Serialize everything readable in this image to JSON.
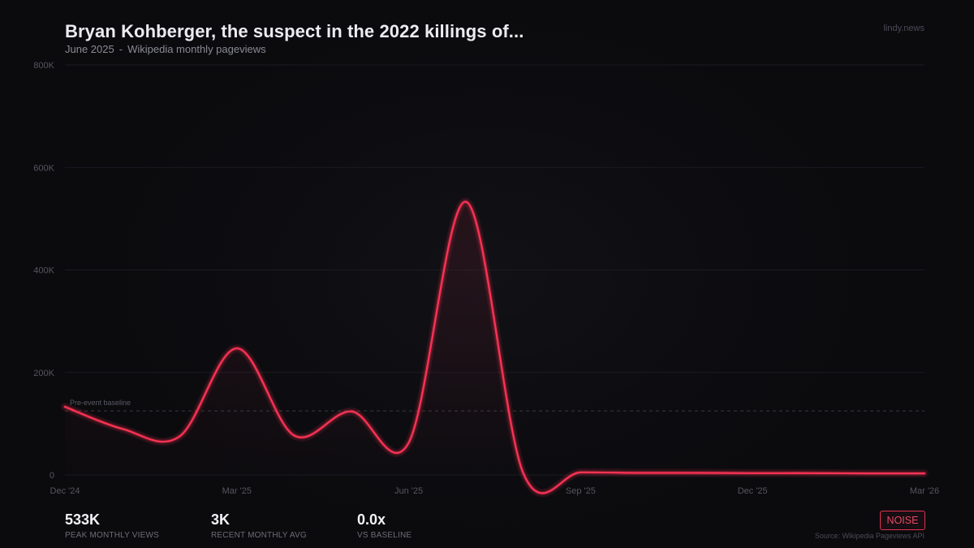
{
  "header": {
    "title": "Bryan Kohberger, the suspect in the 2022 killings of...",
    "period": "June 2025",
    "separator": "-",
    "metric": "Wikipedia monthly pageviews",
    "brand": "lindy.news"
  },
  "chart_data": {
    "type": "line",
    "title": "Bryan Kohberger, the suspect in the 2022 killings of...",
    "xlabel": "",
    "ylabel": "",
    "ylim": [
      0,
      800000
    ],
    "yticks": [
      {
        "value": 0,
        "label": "0"
      },
      {
        "value": 200000,
        "label": "200K"
      },
      {
        "value": 400000,
        "label": "400K"
      },
      {
        "value": 600000,
        "label": "600K"
      },
      {
        "value": 800000,
        "label": "800K"
      }
    ],
    "xticks": [
      {
        "index": 0,
        "label": "Dec '24"
      },
      {
        "index": 3,
        "label": "Mar '25"
      },
      {
        "index": 6,
        "label": "Jun '25"
      },
      {
        "index": 9,
        "label": "Sep '25"
      },
      {
        "index": 12,
        "label": "Dec '25"
      },
      {
        "index": 15,
        "label": "Mar '26"
      }
    ],
    "x": [
      "Dec '24",
      "Jan '25",
      "Feb '25",
      "Mar '25",
      "Apr '25",
      "May '25",
      "Jun '25",
      "Jul '25",
      "Aug '25",
      "Sep '25",
      "Oct '25",
      "Nov '25",
      "Dec '25",
      "Jan '26",
      "Feb '26",
      "Mar '26"
    ],
    "series": [
      {
        "name": "Monthly pageviews",
        "color": "#ff3355",
        "values": [
          133000,
          90000,
          75000,
          247000,
          77000,
          124000,
          63000,
          533000,
          3000,
          5000,
          4000,
          4000,
          3500,
          3500,
          3000,
          3000
        ]
      }
    ],
    "baseline": {
      "value": 125000,
      "label": "Pre-event baseline"
    },
    "grid": true,
    "legend": "none"
  },
  "stats": [
    {
      "value": "533K",
      "label": "PEAK MONTHLY VIEWS"
    },
    {
      "value": "3K",
      "label": "RECENT MONTHLY AVG"
    },
    {
      "value": "0.0x",
      "label": "VS BASELINE"
    }
  ],
  "badge": {
    "label": "NOISE",
    "color": "#e0314f"
  },
  "footer": {
    "source": "Source: Wikipedia Pageviews API"
  }
}
